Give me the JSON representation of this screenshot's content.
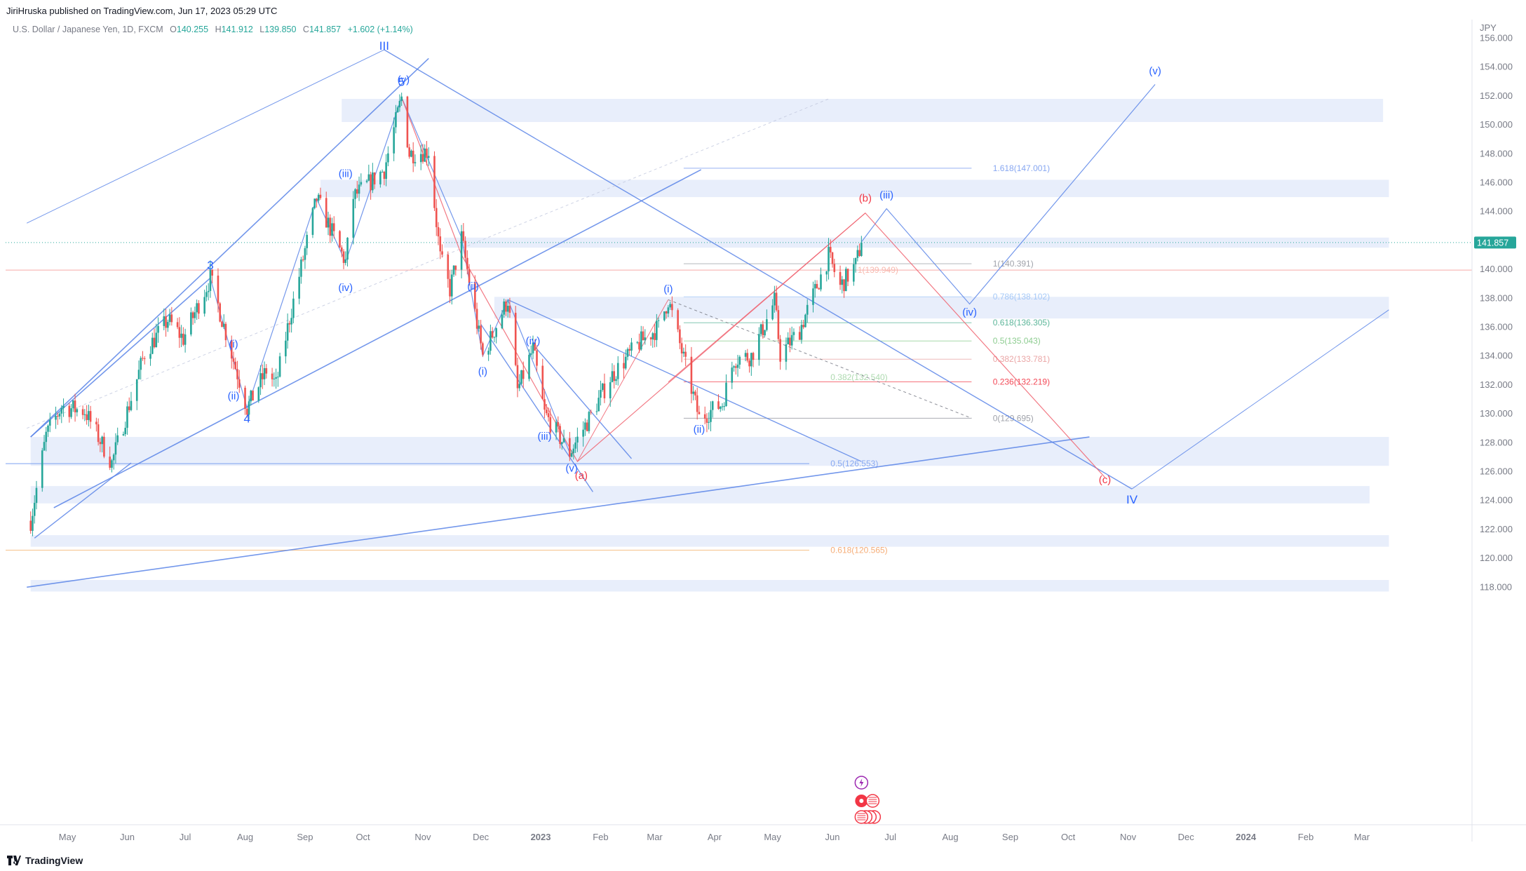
{
  "header": {
    "published": "JiriHruska published on TradingView.com, Jun 17, 2023 05:29 UTC"
  },
  "footer": {
    "brand": "TradingView"
  },
  "colors": {
    "up": "#26a69a",
    "down": "#ef5350",
    "wave_blue": "#2962ff",
    "wave_red": "#f23645",
    "zone": "#e8eefb",
    "price_tag": "#26a69a"
  },
  "legend": {
    "symbol": "U.S. Dollar / Japanese Yen, 1D, FXCM",
    "o_label": "O",
    "o": "140.255",
    "h_label": "H",
    "h": "141.912",
    "l_label": "L",
    "l": "139.850",
    "c_label": "C",
    "c": "141.857",
    "change": "+1.602 (+1.14%)"
  },
  "chart_data": {
    "type": "candlestick",
    "title": "U.S. Dollar / Japanese Yen, 1D, FXCM",
    "currency": "JPY",
    "last_price": 141.857,
    "last_price_label": "141.857",
    "y_ticks": [
      "156.000",
      "154.000",
      "152.000",
      "150.000",
      "148.000",
      "146.000",
      "144.000",
      "142.000",
      "140.000",
      "138.000",
      "136.000",
      "134.000",
      "132.000",
      "130.000",
      "128.000",
      "126.000",
      "124.000",
      "122.000",
      "120.000",
      "118.000"
    ],
    "ylim": [
      117.0,
      157.0
    ],
    "x_months": [
      "May",
      "Jun",
      "Jul",
      "Aug",
      "Sep",
      "Oct",
      "Nov",
      "Dec",
      "2023",
      "Feb",
      "Mar",
      "Apr",
      "May",
      "Jun",
      "Jul",
      "Aug",
      "Sep",
      "Oct",
      "Nov",
      "Dec",
      "2024",
      "Feb",
      "Mar"
    ],
    "x_range": [
      "2022-04-12",
      "2024-03-15"
    ],
    "price_path_knots": [
      [
        "2022-04-12",
        122.6
      ],
      [
        "2022-04-20",
        128.5
      ],
      [
        "2022-04-28",
        130.5
      ],
      [
        "2022-05-10",
        130.2
      ],
      [
        "2022-05-24",
        126.6
      ],
      [
        "2022-06-10",
        134.2
      ],
      [
        "2022-06-22",
        136.5
      ],
      [
        "2022-06-30",
        135.2
      ],
      [
        "2022-07-14",
        139.4
      ],
      [
        "2022-08-02",
        130.4
      ],
      [
        "2022-08-12",
        133.0
      ],
      [
        "2022-08-17",
        132.0
      ],
      [
        "2022-08-24",
        136.6
      ],
      [
        "2022-09-07",
        144.9
      ],
      [
        "2022-09-22",
        140.5
      ],
      [
        "2022-09-26",
        145.0
      ],
      [
        "2022-10-12",
        146.9
      ],
      [
        "2022-10-21",
        151.9
      ],
      [
        "2022-10-25",
        148.0
      ],
      [
        "2022-11-04",
        148.2
      ],
      [
        "2022-11-10",
        140.8
      ],
      [
        "2022-11-15",
        138.6
      ],
      [
        "2022-11-21",
        142.2
      ],
      [
        "2022-12-02",
        134.0
      ],
      [
        "2022-12-15",
        137.9
      ],
      [
        "2022-12-20",
        131.6
      ],
      [
        "2022-12-28",
        134.5
      ],
      [
        "2023-01-03",
        130.0
      ],
      [
        "2023-01-16",
        127.3
      ],
      [
        "2023-01-27",
        129.9
      ],
      [
        "2023-02-06",
        132.5
      ],
      [
        "2023-02-21",
        134.9
      ],
      [
        "2023-03-03",
        136.0
      ],
      [
        "2023-03-08",
        137.9
      ],
      [
        "2023-03-24",
        129.7
      ],
      [
        "2023-04-05",
        130.7
      ],
      [
        "2023-04-11",
        133.8
      ],
      [
        "2023-04-20",
        134.0
      ],
      [
        "2023-05-02",
        137.8
      ],
      [
        "2023-05-05",
        134.1
      ],
      [
        "2023-05-15",
        135.8
      ],
      [
        "2023-05-30",
        140.9
      ],
      [
        "2023-06-05",
        138.8
      ],
      [
        "2023-06-13",
        140.3
      ],
      [
        "2023-06-16",
        141.857
      ]
    ],
    "fib_levels": [
      {
        "label": "1.618(147.001)",
        "value": 147.001
      },
      {
        "label": "1(140.391)",
        "value": 140.391
      },
      {
        "label": "1(139.949)",
        "value": 139.949
      },
      {
        "label": "0.786(138.102)",
        "value": 138.102
      },
      {
        "label": "0.618(136.305)",
        "value": 136.305
      },
      {
        "label": "0.5(135.043)",
        "value": 135.043
      },
      {
        "label": "0.382(133.781)",
        "value": 133.781
      },
      {
        "label": "0.382(132.540)",
        "value": 132.54
      },
      {
        "label": "0.236(132.219)",
        "value": 132.219
      },
      {
        "label": "0(129.695)",
        "value": 129.695
      },
      {
        "label": "0.5(126.553)",
        "value": 126.553
      },
      {
        "label": "0.618(120.565)",
        "value": 120.565
      }
    ],
    "wave_labels": [
      {
        "text": "III",
        "date": "2022-10-12",
        "price": 155.2
      },
      {
        "text": "5",
        "date": "2022-10-21",
        "price": 152.7
      },
      {
        "text": "(v)",
        "date": "2022-10-22",
        "price": 152.9
      },
      {
        "text": "3",
        "date": "2022-07-14",
        "price": 140.0
      },
      {
        "text": "4",
        "date": "2022-08-02",
        "price": 129.4
      },
      {
        "text": "(i)",
        "date": "2022-07-26",
        "price": 134.6
      },
      {
        "text": "(ii)",
        "date": "2022-07-26",
        "price": 131.0
      },
      {
        "text": "(iii)",
        "date": "2022-09-22",
        "price": 146.4
      },
      {
        "text": "(iv)",
        "date": "2022-09-22",
        "price": 138.5
      },
      {
        "text": "(ii)",
        "date": "2022-11-27",
        "price": 138.6
      },
      {
        "text": "(i)",
        "date": "2022-12-02",
        "price": 132.7
      },
      {
        "text": "(iv)",
        "date": "2022-12-28",
        "price": 134.8
      },
      {
        "text": "(iii)",
        "date": "2023-01-03",
        "price": 128.2
      },
      {
        "text": "(v)",
        "date": "2023-01-17",
        "price": 126.0
      },
      {
        "text": "(a)",
        "date": "2023-01-22",
        "price": 125.5
      },
      {
        "text": "(i)",
        "date": "2023-03-08",
        "price": 138.4
      },
      {
        "text": "(ii)",
        "date": "2023-03-24",
        "price": 128.7
      },
      {
        "text": "(b)",
        "date": "2023-06-18",
        "price": 144.7
      },
      {
        "text": "(iii)",
        "date": "2023-06-29",
        "price": 144.9
      },
      {
        "text": "(iv)",
        "date": "2023-08-11",
        "price": 136.8
      },
      {
        "text": "(c)",
        "date": "2023-10-20",
        "price": 125.2
      },
      {
        "text": "IV",
        "date": "2023-11-03",
        "price": 123.8
      },
      {
        "text": "(v)",
        "date": "2023-11-15",
        "price": 153.5
      }
    ],
    "zones": [
      {
        "from": "2022-09-20",
        "to": "2024-03-12",
        "top": 151.8,
        "bottom": 150.2
      },
      {
        "from": "2022-09-09",
        "to": "2024-03-15",
        "top": 146.2,
        "bottom": 145.0
      },
      {
        "from": "2022-11-12",
        "to": "2024-03-15",
        "top": 142.2,
        "bottom": 141.5
      },
      {
        "from": "2022-12-08",
        "to": "2024-03-15",
        "top": 138.1,
        "bottom": 136.6
      },
      {
        "from": "2022-04-12",
        "to": "2024-03-15",
        "top": 128.4,
        "bottom": 126.4
      },
      {
        "from": "2022-04-12",
        "to": "2024-03-05",
        "top": 125.0,
        "bottom": 123.8
      },
      {
        "from": "2022-04-12",
        "to": "2024-03-15",
        "top": 121.6,
        "bottom": 120.8
      },
      {
        "from": "2022-04-12",
        "to": "2024-03-15",
        "top": 118.5,
        "bottom": 117.7
      }
    ]
  }
}
